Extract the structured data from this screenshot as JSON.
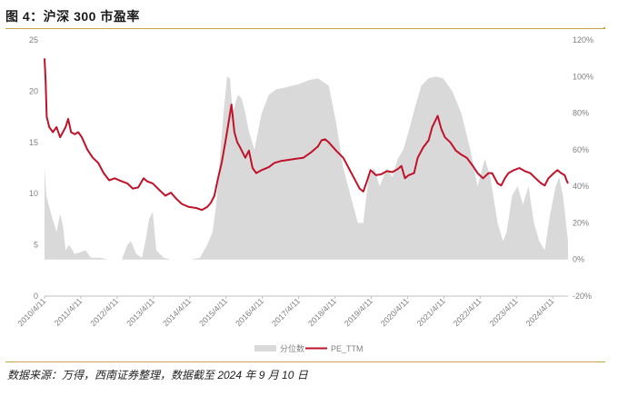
{
  "header": {
    "title": "图 4：沪深 300 市盈率"
  },
  "footer": {
    "source": "数据来源：万得，西南证券整理，数据截至 2024 年 9 月 10 日"
  },
  "colors": {
    "pe_line": "#c0122a",
    "percentile_area": "#d9d9d9",
    "axis": "#bfbfbf",
    "rule": "#c8a24a"
  },
  "chart_data": {
    "type": "line+area",
    "x_tick_labels": [
      "2010/4/11",
      "2011/4/11",
      "2012/4/11",
      "2013/4/11",
      "2014/4/11",
      "2015/4/11",
      "2016/4/11",
      "2017/4/11",
      "2018/4/11",
      "2019/4/11",
      "2020/4/11",
      "2021/4/11",
      "2022/4/11",
      "2023/4/11",
      "2024/4/11"
    ],
    "y_left": {
      "ticks": [
        "0",
        "5",
        "10",
        "15",
        "20",
        "25"
      ],
      "lim": [
        0,
        25
      ]
    },
    "y_right": {
      "ticks": [
        "-20%",
        "0%",
        "20%",
        "40%",
        "60%",
        "80%",
        "100%",
        "120%"
      ],
      "lim": [
        -20,
        120
      ]
    },
    "legend": [
      "分位数",
      "PE_TTM"
    ],
    "series": [
      {
        "name": "PE_TTM",
        "axis": "left",
        "type": "line",
        "points": [
          [
            2010.27,
            23.2
          ],
          [
            2010.3,
            21
          ],
          [
            2010.33,
            17.5
          ],
          [
            2010.4,
            16.5
          ],
          [
            2010.5,
            16
          ],
          [
            2010.6,
            16.5
          ],
          [
            2010.7,
            15.5
          ],
          [
            2010.85,
            16.5
          ],
          [
            2010.92,
            17.3
          ],
          [
            2011.0,
            16
          ],
          [
            2011.1,
            15.8
          ],
          [
            2011.2,
            16
          ],
          [
            2011.3,
            15.5
          ],
          [
            2011.45,
            14.3
          ],
          [
            2011.6,
            13.5
          ],
          [
            2011.75,
            13
          ],
          [
            2011.9,
            12
          ],
          [
            2012.05,
            11.3
          ],
          [
            2012.2,
            11.5
          ],
          [
            2012.4,
            11.2
          ],
          [
            2012.55,
            11
          ],
          [
            2012.7,
            10.5
          ],
          [
            2012.85,
            10.6
          ],
          [
            2013.0,
            11.5
          ],
          [
            2013.1,
            11.2
          ],
          [
            2013.25,
            11
          ],
          [
            2013.45,
            10.3
          ],
          [
            2013.6,
            9.8
          ],
          [
            2013.75,
            10.1
          ],
          [
            2013.9,
            9.5
          ],
          [
            2014.05,
            9
          ],
          [
            2014.25,
            8.7
          ],
          [
            2014.45,
            8.6
          ],
          [
            2014.6,
            8.4
          ],
          [
            2014.75,
            8.7
          ],
          [
            2014.85,
            9.1
          ],
          [
            2014.95,
            9.8
          ],
          [
            2015.05,
            11.5
          ],
          [
            2015.15,
            13
          ],
          [
            2015.25,
            15
          ],
          [
            2015.32,
            16.5
          ],
          [
            2015.42,
            18.7
          ],
          [
            2015.5,
            16
          ],
          [
            2015.58,
            15
          ],
          [
            2015.66,
            14.5
          ],
          [
            2015.8,
            13.5
          ],
          [
            2015.9,
            14.2
          ],
          [
            2016.0,
            12.5
          ],
          [
            2016.1,
            12
          ],
          [
            2016.25,
            12.3
          ],
          [
            2016.45,
            12.6
          ],
          [
            2016.6,
            13
          ],
          [
            2016.8,
            13.2
          ],
          [
            2017.0,
            13.3
          ],
          [
            2017.2,
            13.4
          ],
          [
            2017.4,
            13.5
          ],
          [
            2017.6,
            14
          ],
          [
            2017.8,
            14.6
          ],
          [
            2017.9,
            15.2
          ],
          [
            2018.0,
            15.3
          ],
          [
            2018.1,
            15
          ],
          [
            2018.3,
            14.2
          ],
          [
            2018.5,
            13.5
          ],
          [
            2018.65,
            12.5
          ],
          [
            2018.8,
            11.5
          ],
          [
            2018.95,
            10.5
          ],
          [
            2019.05,
            10.2
          ],
          [
            2019.15,
            11.2
          ],
          [
            2019.25,
            12.3
          ],
          [
            2019.4,
            11.8
          ],
          [
            2019.55,
            11.9
          ],
          [
            2019.7,
            12.2
          ],
          [
            2019.85,
            12.1
          ],
          [
            2020.0,
            12.4
          ],
          [
            2020.1,
            12.7
          ],
          [
            2020.2,
            11.5
          ],
          [
            2020.3,
            11.8
          ],
          [
            2020.45,
            12
          ],
          [
            2020.55,
            13.5
          ],
          [
            2020.7,
            14.5
          ],
          [
            2020.85,
            15.2
          ],
          [
            2020.95,
            16.5
          ],
          [
            2021.1,
            17.6
          ],
          [
            2021.2,
            16.3
          ],
          [
            2021.3,
            15.5
          ],
          [
            2021.45,
            15
          ],
          [
            2021.6,
            14.2
          ],
          [
            2021.75,
            13.8
          ],
          [
            2021.9,
            13.5
          ],
          [
            2022.05,
            12.8
          ],
          [
            2022.2,
            12
          ],
          [
            2022.35,
            11.5
          ],
          [
            2022.5,
            12
          ],
          [
            2022.6,
            12
          ],
          [
            2022.75,
            11
          ],
          [
            2022.85,
            10.8
          ],
          [
            2022.95,
            11.5
          ],
          [
            2023.05,
            12
          ],
          [
            2023.2,
            12.3
          ],
          [
            2023.35,
            12.5
          ],
          [
            2023.5,
            12.2
          ],
          [
            2023.65,
            12
          ],
          [
            2023.8,
            11.5
          ],
          [
            2023.95,
            11
          ],
          [
            2024.05,
            10.8
          ],
          [
            2024.15,
            11.5
          ],
          [
            2024.3,
            12
          ],
          [
            2024.4,
            12.3
          ],
          [
            2024.5,
            12
          ],
          [
            2024.6,
            11.8
          ],
          [
            2024.65,
            11.3
          ],
          [
            2024.69,
            11
          ]
        ]
      },
      {
        "name": "分位数",
        "axis": "right",
        "type": "area",
        "points": [
          [
            2010.27,
            50
          ],
          [
            2010.32,
            35
          ],
          [
            2010.45,
            25
          ],
          [
            2010.6,
            15
          ],
          [
            2010.7,
            25
          ],
          [
            2010.78,
            18
          ],
          [
            2010.85,
            5
          ],
          [
            2010.95,
            8
          ],
          [
            2011.1,
            3
          ],
          [
            2011.4,
            5
          ],
          [
            2011.55,
            1
          ],
          [
            2011.8,
            1
          ],
          [
            2012.0,
            0
          ],
          [
            2012.4,
            0
          ],
          [
            2012.55,
            8
          ],
          [
            2012.65,
            10
          ],
          [
            2012.8,
            3
          ],
          [
            2012.95,
            1
          ],
          [
            2013.05,
            10
          ],
          [
            2013.15,
            22
          ],
          [
            2013.25,
            26
          ],
          [
            2013.35,
            5
          ],
          [
            2013.55,
            1
          ],
          [
            2013.75,
            0
          ],
          [
            2014.3,
            0
          ],
          [
            2014.55,
            1
          ],
          [
            2014.75,
            8
          ],
          [
            2014.9,
            15
          ],
          [
            2015.0,
            30
          ],
          [
            2015.1,
            55
          ],
          [
            2015.2,
            80
          ],
          [
            2015.3,
            100
          ],
          [
            2015.38,
            99
          ],
          [
            2015.45,
            80
          ],
          [
            2015.52,
            85
          ],
          [
            2015.6,
            90
          ],
          [
            2015.7,
            88
          ],
          [
            2015.8,
            80
          ],
          [
            2015.9,
            70
          ],
          [
            2016.05,
            60
          ],
          [
            2016.25,
            80
          ],
          [
            2016.45,
            90
          ],
          [
            2016.65,
            93
          ],
          [
            2016.9,
            94
          ],
          [
            2017.1,
            95
          ],
          [
            2017.3,
            96
          ],
          [
            2017.55,
            98
          ],
          [
            2017.8,
            99
          ],
          [
            2017.95,
            97
          ],
          [
            2018.1,
            95
          ],
          [
            2018.3,
            75
          ],
          [
            2018.5,
            50
          ],
          [
            2018.7,
            35
          ],
          [
            2018.9,
            20
          ],
          [
            2019.05,
            20
          ],
          [
            2019.2,
            45
          ],
          [
            2019.35,
            50
          ],
          [
            2019.5,
            40
          ],
          [
            2019.7,
            50
          ],
          [
            2019.85,
            45
          ],
          [
            2020.0,
            55
          ],
          [
            2020.15,
            60
          ],
          [
            2020.3,
            70
          ],
          [
            2020.5,
            85
          ],
          [
            2020.65,
            95
          ],
          [
            2020.85,
            99
          ],
          [
            2021.05,
            100
          ],
          [
            2021.25,
            99
          ],
          [
            2021.5,
            92
          ],
          [
            2021.75,
            80
          ],
          [
            2022.0,
            60
          ],
          [
            2022.2,
            40
          ],
          [
            2022.4,
            55
          ],
          [
            2022.55,
            45
          ],
          [
            2022.75,
            20
          ],
          [
            2022.9,
            10
          ],
          [
            2023.0,
            15
          ],
          [
            2023.15,
            35
          ],
          [
            2023.3,
            40
          ],
          [
            2023.45,
            30
          ],
          [
            2023.6,
            40
          ],
          [
            2023.75,
            20
          ],
          [
            2023.9,
            10
          ],
          [
            2024.05,
            5
          ],
          [
            2024.2,
            25
          ],
          [
            2024.35,
            40
          ],
          [
            2024.45,
            45
          ],
          [
            2024.55,
            35
          ],
          [
            2024.69,
            10
          ]
        ]
      }
    ]
  }
}
